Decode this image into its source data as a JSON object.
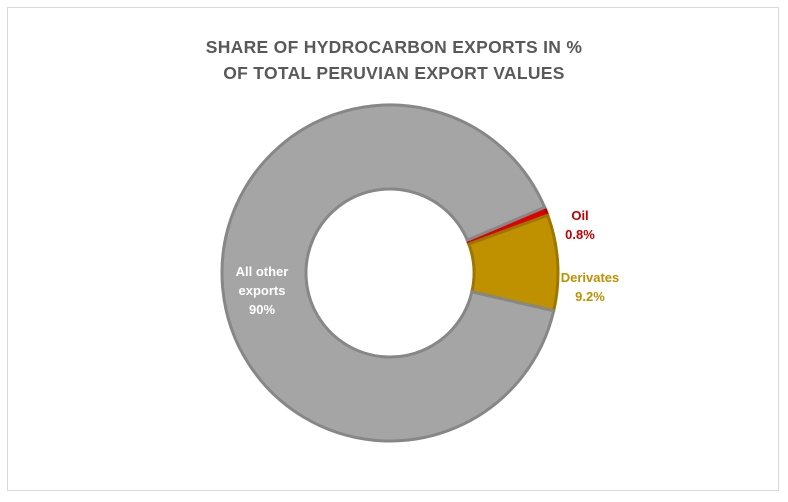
{
  "chart_data": {
    "type": "doughnut",
    "title": "SHARE OF HYDROCARBON EXPORTS IN % OF TOTAL PERUVIAN EXPORT VALUES",
    "categories": [
      "Oil",
      "Derivates",
      "All other exports"
    ],
    "values": [
      0.8,
      9.2,
      90
    ],
    "value_labels": [
      "0.8%",
      "9.2%",
      "90%"
    ],
    "colors": [
      "#e00000",
      "#bf9000",
      "#a5a5a5"
    ],
    "label_colors": [
      "#c00000",
      "#bf9000",
      "#ffffff"
    ]
  }
}
